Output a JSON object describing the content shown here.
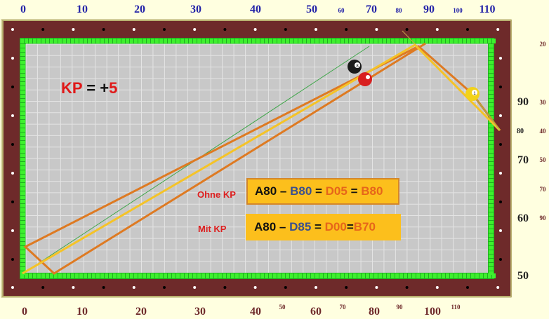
{
  "kp": {
    "label": "KP",
    "eq": " = +",
    "value": "5",
    "color_label": "#e01818",
    "color_value": "#e01818"
  },
  "rows": [
    {
      "label": "Ohne KP",
      "parts": [
        {
          "text": "A80",
          "color": "#111111"
        },
        {
          "text": " – ",
          "color": "#111111"
        },
        {
          "text": "B80",
          "color": "#3a4f8f"
        },
        {
          "text": " = ",
          "color": "#111111"
        },
        {
          "text": "D05",
          "color": "#e6651a"
        },
        {
          "text": " = ",
          "color": "#111111"
        },
        {
          "text": "B80",
          "color": "#e6651a"
        }
      ]
    },
    {
      "label": "Mit KP",
      "parts": [
        {
          "text": "A80",
          "color": "#111111"
        },
        {
          "text": " – ",
          "color": "#111111"
        },
        {
          "text": "D85",
          "color": "#3a4f8f"
        },
        {
          "text": " = ",
          "color": "#111111"
        },
        {
          "text": "D00",
          "color": "#e6651a"
        },
        {
          "text": "=",
          "color": "#111111"
        },
        {
          "text": "B70",
          "color": "#e6651a"
        }
      ]
    }
  ],
  "scales": {
    "top": [
      "0",
      "10",
      "20",
      "30",
      "40",
      "50",
      "60",
      "70",
      "80",
      "90",
      "100",
      "110"
    ],
    "bottom": [
      "0",
      "10",
      "20",
      "30",
      "40",
      "50",
      "60",
      "70",
      "80",
      "90",
      "100",
      "110"
    ],
    "right_large": [
      "90",
      "80",
      "70",
      "60",
      "50"
    ],
    "right_small": [
      "20",
      "30",
      "40",
      "50",
      "70",
      "90"
    ]
  },
  "balls": [
    {
      "id": "black-ball",
      "number": "8",
      "color": "#1a1a1a"
    },
    {
      "id": "red-ball",
      "number": "",
      "color": "#d81f1f"
    },
    {
      "id": "yellow-ball",
      "number": "1",
      "color": "#f2d21a"
    }
  ],
  "colors": {
    "rail": "#6e2a2a",
    "cushion": "#33dd22",
    "cloth": "#c8c8c8",
    "grid": "#e6e6e6",
    "path_orange": "#de7a22",
    "path_yellow": "#f5c327",
    "path_thin_green": "#3fa64a"
  }
}
